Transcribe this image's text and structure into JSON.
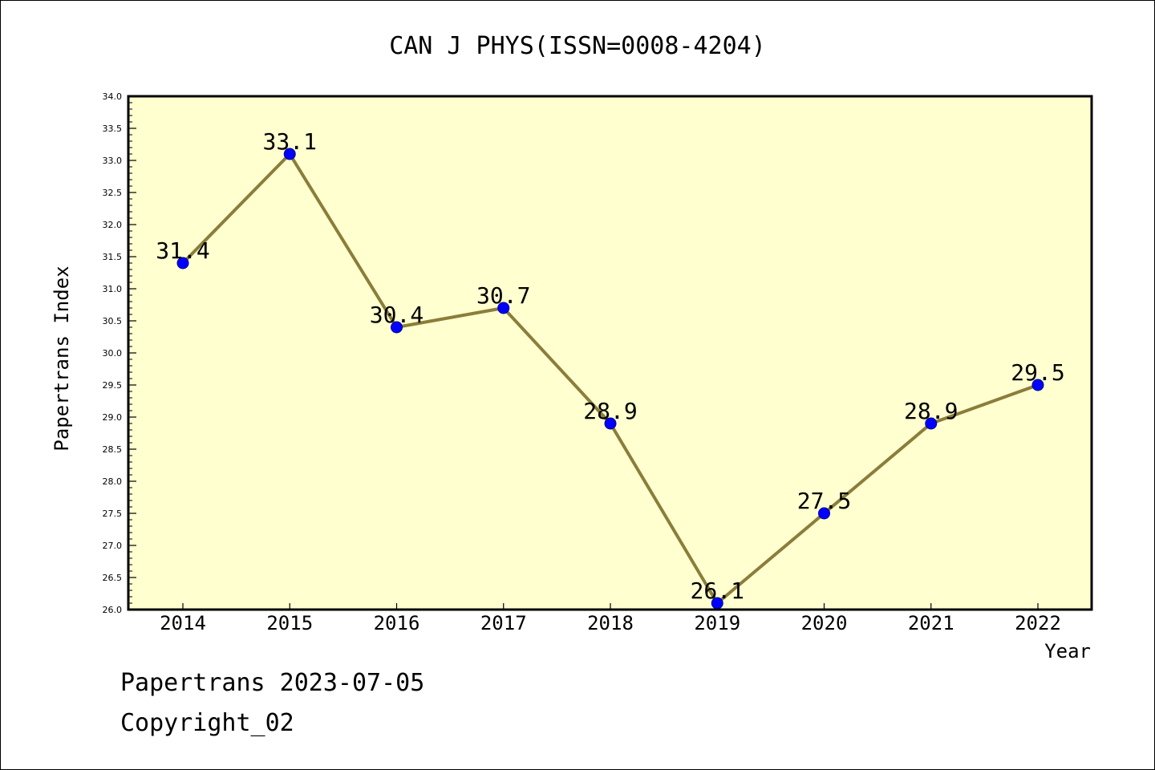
{
  "chart_data": {
    "type": "line",
    "title": "CAN J PHYS(ISSN=0008-4204)",
    "xlabel": "Year",
    "ylabel": "Papertrans Index",
    "categories": [
      "2014",
      "2015",
      "2016",
      "2017",
      "2018",
      "2019",
      "2020",
      "2021",
      "2022"
    ],
    "series": [
      {
        "values": [
          31.4,
          33.1,
          30.4,
          30.7,
          28.9,
          26.1,
          27.5,
          28.9,
          29.5
        ]
      }
    ],
    "data_labels": [
      "31.4",
      "33.1",
      "30.4",
      "30.7",
      "28.9",
      "26.1",
      "27.5",
      "28.9",
      "29.5"
    ],
    "ylim": [
      26.0,
      34.0
    ],
    "yticks": [
      "26.0",
      "26.5",
      "27.0",
      "27.5",
      "28.0",
      "28.5",
      "29.0",
      "29.5",
      "30.0",
      "30.5",
      "31.0",
      "31.5",
      "32.0",
      "32.5",
      "33.0",
      "33.5",
      "34.0"
    ],
    "grid": false,
    "legend": "none",
    "colors": {
      "plot_background": "#ffffd0",
      "line": "#8b7d3a",
      "marker": "#0000ff"
    }
  },
  "footer": {
    "line1": "Papertrans 2023-07-05",
    "line2": "Copyright_02"
  }
}
